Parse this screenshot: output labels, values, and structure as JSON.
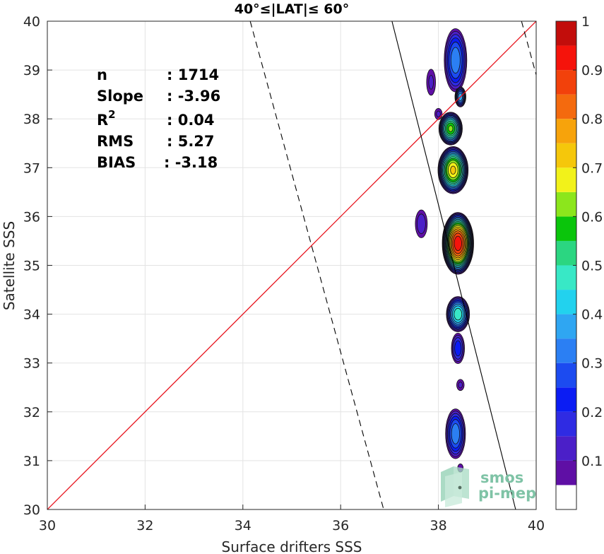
{
  "chart_data": {
    "type": "contour-density-scatter",
    "title": "40°≤|LAT|≤ 60°",
    "xlabel": "Surface drifters SSS",
    "ylabel": "Satellite SSS",
    "xlim": [
      30,
      40
    ],
    "ylim": [
      30,
      40
    ],
    "xticks": [
      30,
      32,
      34,
      36,
      38,
      40
    ],
    "yticks": [
      30,
      31,
      32,
      33,
      34,
      35,
      36,
      37,
      38,
      39,
      40
    ],
    "grid": true,
    "stats": [
      {
        "label": "n",
        "value": ": 1714"
      },
      {
        "label": "Slope",
        "value": ": -3.96"
      },
      {
        "label": "R",
        "sup": "2",
        "value": ": 0.04"
      },
      {
        "label": "RMS",
        "value": ": 5.27"
      },
      {
        "label": "BIAS",
        "value": ": -3.18"
      }
    ],
    "reference_line": {
      "name": "1:1",
      "color": "#e8141e",
      "points": [
        [
          30,
          30
        ],
        [
          40,
          40
        ]
      ]
    },
    "fit_line": {
      "color": "#000000",
      "points": [
        [
          37.05,
          40
        ],
        [
          39.58,
          30
        ]
      ]
    },
    "fit_bounds": [
      {
        "points": [
          [
            34.15,
            40
          ],
          [
            36.88,
            30
          ]
        ],
        "style": "dashed"
      },
      {
        "points": [
          [
            39.7,
            40
          ],
          [
            40,
            38.9
          ]
        ],
        "style": "dashed"
      }
    ],
    "density_blobs": [
      {
        "x": 38.35,
        "y": 39.2,
        "rx": 0.25,
        "ry": 0.7,
        "peak": 0.35
      },
      {
        "x": 38.45,
        "y": 38.45,
        "rx": 0.12,
        "ry": 0.22,
        "peak": 0.4
      },
      {
        "x": 37.85,
        "y": 38.75,
        "rx": 0.12,
        "ry": 0.35,
        "peak": 0.12
      },
      {
        "x": 38.0,
        "y": 38.1,
        "rx": 0.1,
        "ry": 0.15,
        "peak": 0.12
      },
      {
        "x": 38.25,
        "y": 37.8,
        "rx": 0.25,
        "ry": 0.35,
        "peak": 0.62
      },
      {
        "x": 38.3,
        "y": 36.95,
        "rx": 0.32,
        "ry": 0.5,
        "peak": 0.72
      },
      {
        "x": 38.4,
        "y": 35.45,
        "rx": 0.33,
        "ry": 0.65,
        "peak": 0.95
      },
      {
        "x": 37.65,
        "y": 35.85,
        "rx": 0.15,
        "ry": 0.35,
        "peak": 0.15
      },
      {
        "x": 38.4,
        "y": 34.0,
        "rx": 0.25,
        "ry": 0.38,
        "peak": 0.5
      },
      {
        "x": 38.4,
        "y": 33.3,
        "rx": 0.15,
        "ry": 0.35,
        "peak": 0.25
      },
      {
        "x": 38.45,
        "y": 32.55,
        "rx": 0.1,
        "ry": 0.15,
        "peak": 0.12
      },
      {
        "x": 38.35,
        "y": 31.55,
        "rx": 0.22,
        "ry": 0.55,
        "peak": 0.35
      },
      {
        "x": 38.45,
        "y": 30.85,
        "rx": 0.08,
        "ry": 0.12,
        "peak": 0.1
      }
    ],
    "colorbar": {
      "levels": [
        0,
        0.05,
        0.1,
        0.15,
        0.2,
        0.25,
        0.3,
        0.35,
        0.4,
        0.45,
        0.5,
        0.55,
        0.6,
        0.65,
        0.7,
        0.75,
        0.8,
        0.85,
        0.9,
        0.95,
        1
      ],
      "colors": [
        "#ffffff",
        "#5f0fa5",
        "#4b1fc8",
        "#2f2be3",
        "#0b1cf3",
        "#1c4bf0",
        "#2b7ff3",
        "#2fa6f2",
        "#22d2ee",
        "#38e8c6",
        "#2bd681",
        "#0ac50b",
        "#8ce61c",
        "#f2f21a",
        "#f5c70b",
        "#f7a30b",
        "#f46a0e",
        "#f2410b",
        "#f5130b",
        "#c20d0b",
        "#8c0906"
      ],
      "ticks": [
        0.1,
        0.2,
        0.3,
        0.4,
        0.5,
        0.6,
        0.7,
        0.8,
        0.9,
        1
      ],
      "tick_labels": [
        "0.1",
        "0.2",
        "0.3",
        "0.4",
        "0.5",
        "0.6",
        "0.7",
        "0.8",
        "0.9",
        "1"
      ]
    },
    "logo": {
      "line1": "smos",
      "line2": "pi-mep"
    }
  }
}
